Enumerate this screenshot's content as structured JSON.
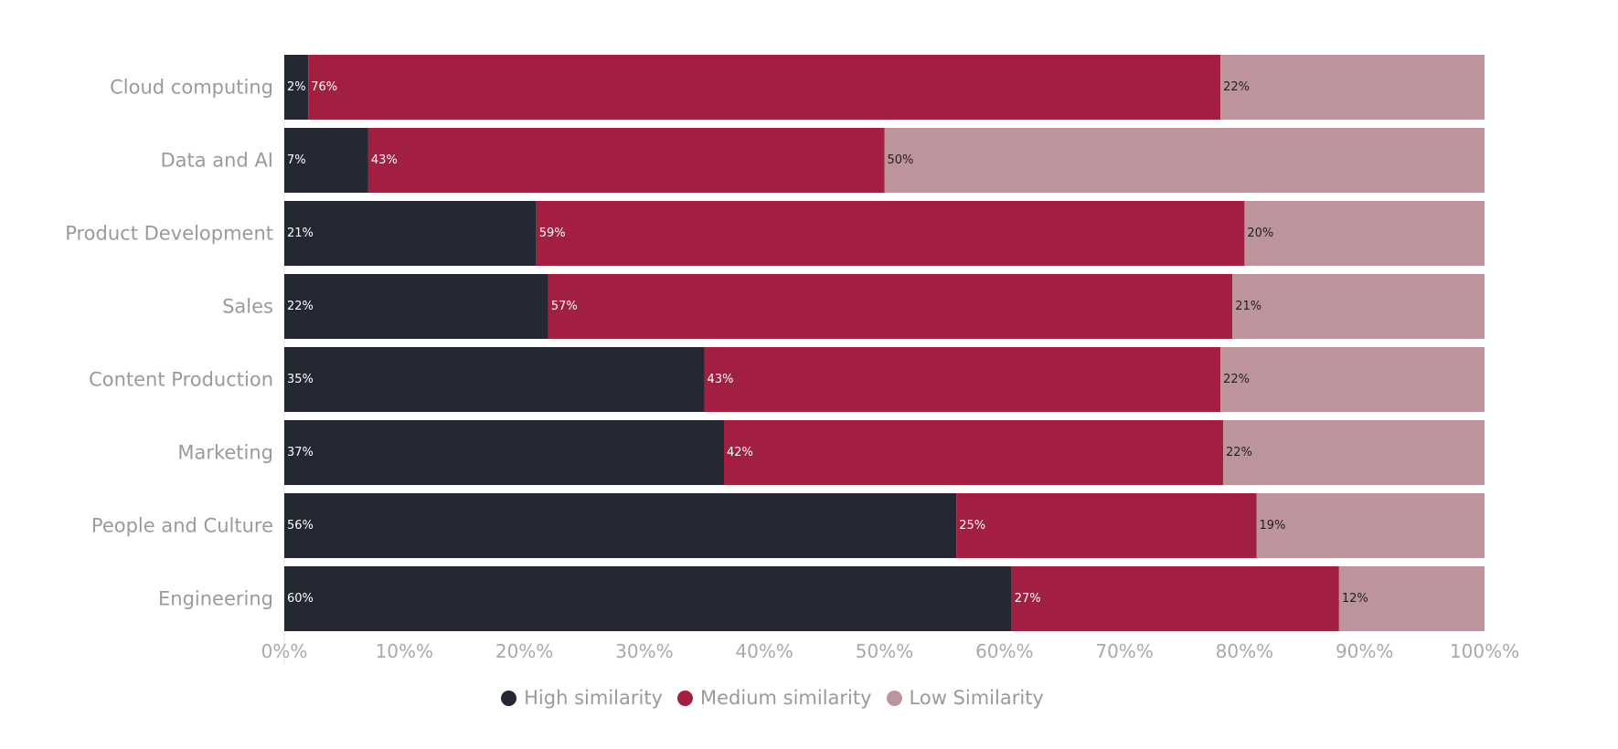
{
  "chart_data": {
    "type": "bar",
    "orientation": "horizontal",
    "stacked": "percent",
    "categories": [
      "Cloud computing",
      "Data and AI",
      "Product Development",
      "Sales",
      "Content Production",
      "Marketing",
      "People and Culture",
      "Engineering"
    ],
    "series": [
      {
        "name": "High similarity",
        "color": "#232833",
        "label_color": "#ffffff",
        "values": [
          2,
          7,
          21,
          22,
          35,
          37,
          56,
          60
        ],
        "labels": [
          "2%",
          "7%",
          "21%",
          "22%",
          "35%",
          "37%",
          "56%",
          "60%"
        ]
      },
      {
        "name": "Medium similarity",
        "color": "#a31f42",
        "label_color": "#ffffff",
        "values": [
          76,
          43,
          59,
          57,
          43,
          42,
          25,
          27
        ],
        "labels": [
          "76%",
          "43%",
          "59%",
          "57%",
          "43%",
          "42%",
          "25%",
          "27%"
        ]
      },
      {
        "name": "Low Similarity",
        "color": "#bd949b",
        "label_color": "#222222",
        "values": [
          22,
          50,
          20,
          21,
          22,
          22,
          19,
          12
        ],
        "labels": [
          "22%",
          "50%",
          "20%",
          "21%",
          "22%",
          "22%",
          "19%",
          "12%"
        ]
      }
    ],
    "x_ticks": [
      "0%%",
      "10%%",
      "20%%",
      "30%%",
      "40%%",
      "50%%",
      "60%%",
      "70%%",
      "80%%",
      "90%%",
      "100%%"
    ],
    "xlim": [
      0,
      100
    ],
    "title": "",
    "xlabel": "",
    "ylabel": "",
    "grid": false,
    "legend_position": "bottom-center"
  }
}
